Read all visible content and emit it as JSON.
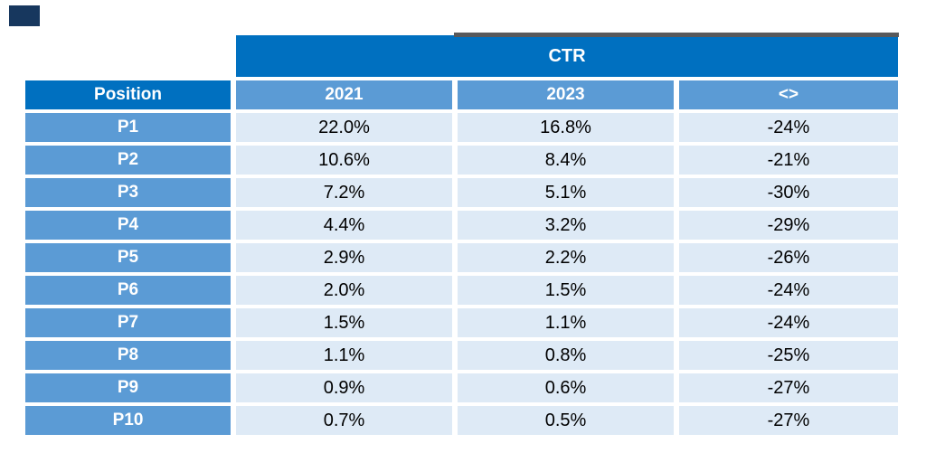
{
  "colors": {
    "group_header_blue": "#0070C0",
    "header_medium_blue": "#5B9BD5",
    "value_cell_light_blue": "#DEEAF6",
    "header_text": "#FFFFFF",
    "value_text": "#000000",
    "grey_strip": "#58595B",
    "navy_mark": "#17375E"
  },
  "chart_data": {
    "type": "table",
    "title": "CTR",
    "columns": [
      "Position",
      "2021",
      "2023",
      "<>"
    ],
    "categories": [
      "P1",
      "P2",
      "P3",
      "P4",
      "P5",
      "P6",
      "P7",
      "P8",
      "P9",
      "P10"
    ],
    "series": [
      {
        "name": "2021",
        "unit": "%",
        "values": [
          22.0,
          10.6,
          7.2,
          4.4,
          2.9,
          2.0,
          1.5,
          1.1,
          0.9,
          0.7
        ]
      },
      {
        "name": "2023",
        "unit": "%",
        "values": [
          16.8,
          8.4,
          5.1,
          3.2,
          2.2,
          1.5,
          1.1,
          0.8,
          0.6,
          0.5
        ]
      },
      {
        "name": "<>",
        "unit": "%",
        "values": [
          -24,
          -21,
          -30,
          -29,
          -26,
          -24,
          -24,
          -25,
          -27,
          -27
        ]
      }
    ],
    "rows": [
      [
        "P1",
        "22.0%",
        "16.8%",
        "-24%"
      ],
      [
        "P2",
        "10.6%",
        "8.4%",
        "-21%"
      ],
      [
        "P3",
        "7.2%",
        "5.1%",
        "-30%"
      ],
      [
        "P4",
        "4.4%",
        "3.2%",
        "-29%"
      ],
      [
        "P5",
        "2.9%",
        "2.2%",
        "-26%"
      ],
      [
        "P6",
        "2.0%",
        "1.5%",
        "-24%"
      ],
      [
        "P7",
        "1.5%",
        "1.1%",
        "-24%"
      ],
      [
        "P8",
        "1.1%",
        "0.8%",
        "-25%"
      ],
      [
        "P9",
        "0.9%",
        "0.6%",
        "-27%"
      ],
      [
        "P10",
        "0.7%",
        "0.5%",
        "-27%"
      ]
    ]
  }
}
